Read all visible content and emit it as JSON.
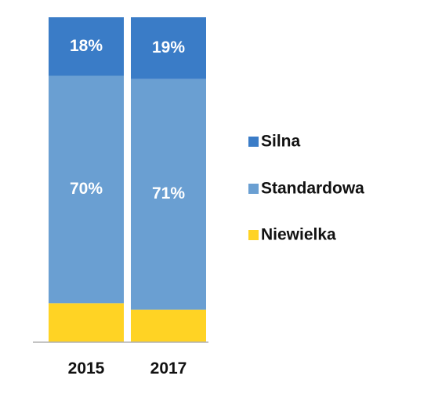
{
  "chart_data": {
    "type": "bar",
    "stacked": true,
    "normalized": true,
    "categories": [
      "2015",
      "2017"
    ],
    "series": [
      {
        "name": "Niewielka",
        "values": [
          12,
          10
        ],
        "color": "#FFD324",
        "labels": [
          "",
          ""
        ]
      },
      {
        "name": "Standardowa",
        "values": [
          70,
          71
        ],
        "color": "#6A9FD2",
        "labels": [
          "70%",
          "71%"
        ]
      },
      {
        "name": "Silna",
        "values": [
          18,
          19
        ],
        "color": "#3A7CC7",
        "labels": [
          "18%",
          "19%"
        ]
      }
    ],
    "legend_order": [
      "Silna",
      "Standardowa",
      "Niewielka"
    ],
    "legend_position": "right",
    "ylim": [
      0,
      100
    ],
    "grid": false,
    "title": "",
    "xlabel": "",
    "ylabel": ""
  }
}
